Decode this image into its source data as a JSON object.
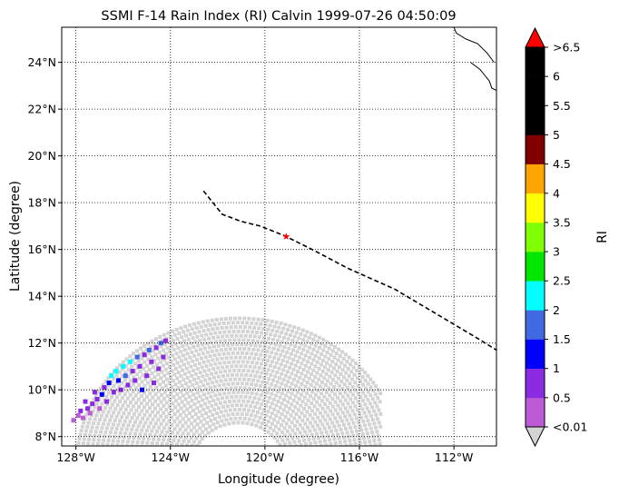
{
  "chart_data": {
    "type": "heatmap",
    "title": "SSMI F-14 Rain Index (RI) Calvin 1999-07-26 04:50:09",
    "xlabel": "Longitude (degree)",
    "ylabel": "Latitude (degree)",
    "xlim": [
      -128.6,
      -110.2
    ],
    "ylim": [
      7.6,
      25.5
    ],
    "xticks": [
      {
        "value": -128,
        "label": "128°W"
      },
      {
        "value": -124,
        "label": "124°W"
      },
      {
        "value": -120,
        "label": "120°W"
      },
      {
        "value": -116,
        "label": "116°W"
      },
      {
        "value": -112,
        "label": "112°W"
      }
    ],
    "yticks": [
      {
        "value": 8,
        "label": "8°N"
      },
      {
        "value": 10,
        "label": "10°N"
      },
      {
        "value": 12,
        "label": "12°N"
      },
      {
        "value": 14,
        "label": "14°N"
      },
      {
        "value": 16,
        "label": "16°N"
      },
      {
        "value": 18,
        "label": "18°N"
      },
      {
        "value": 20,
        "label": "20°N"
      },
      {
        "value": 22,
        "label": "22°N"
      },
      {
        "value": 24,
        "label": "24°N"
      }
    ],
    "grid": true,
    "swath": {
      "center_lon": -121.1,
      "center_lat": 6.8,
      "outer_radius_deg": 5.7,
      "color": "#d3d3d3"
    },
    "track": [
      [
        -122.6,
        18.5
      ],
      [
        -122.2,
        18.0
      ],
      [
        -121.8,
        17.5
      ],
      [
        -121.0,
        17.2
      ],
      [
        -120.2,
        17.0
      ],
      [
        -119.2,
        16.6
      ],
      [
        -118.0,
        16.0
      ],
      [
        -116.5,
        15.2
      ],
      [
        -114.5,
        14.3
      ],
      [
        -112.5,
        13.1
      ],
      [
        -111.0,
        12.2
      ],
      [
        -110.2,
        11.7
      ]
    ],
    "storm_center": {
      "lon": -119.1,
      "lat": 16.55,
      "color": "#ff0000"
    },
    "coastline": [
      [
        -110.3,
        24.0
      ],
      [
        -110.6,
        24.4
      ],
      [
        -111.0,
        24.8
      ],
      [
        -111.5,
        25.0
      ],
      [
        -111.9,
        25.25
      ],
      [
        -112.0,
        25.5
      ]
    ],
    "coastline2": [
      [
        -110.2,
        22.8
      ],
      [
        -110.4,
        22.9
      ],
      [
        -110.5,
        23.2
      ],
      [
        -110.9,
        23.7
      ],
      [
        -111.3,
        24.0
      ]
    ],
    "rain_cells": [
      {
        "lon": -128.1,
        "lat": 8.7,
        "ri": 0.3
      },
      {
        "lon": -127.9,
        "lat": 8.9,
        "ri": 0.3
      },
      {
        "lon": -127.7,
        "lat": 8.8,
        "ri": 0.2
      },
      {
        "lon": -127.8,
        "lat": 9.1,
        "ri": 0.8
      },
      {
        "lon": -127.5,
        "lat": 9.2,
        "ri": 0.8
      },
      {
        "lon": -127.6,
        "lat": 9.5,
        "ri": 0.8
      },
      {
        "lon": -127.4,
        "lat": 9.0,
        "ri": 0.3
      },
      {
        "lon": -127.3,
        "lat": 9.4,
        "ri": 0.7
      },
      {
        "lon": -127.1,
        "lat": 9.6,
        "ri": 0.8
      },
      {
        "lon": -127.2,
        "lat": 9.9,
        "ri": 0.6
      },
      {
        "lon": -127.0,
        "lat": 9.2,
        "ri": 0.3
      },
      {
        "lon": -126.9,
        "lat": 9.8,
        "ri": 1.2
      },
      {
        "lon": -126.8,
        "lat": 10.1,
        "ri": 0.8
      },
      {
        "lon": -126.7,
        "lat": 9.5,
        "ri": 0.6
      },
      {
        "lon": -126.6,
        "lat": 10.3,
        "ri": 1.3
      },
      {
        "lon": -126.5,
        "lat": 10.6,
        "ri": 2.3
      },
      {
        "lon": -126.4,
        "lat": 9.9,
        "ri": 0.8
      },
      {
        "lon": -126.3,
        "lat": 10.8,
        "ri": 2.4
      },
      {
        "lon": -126.2,
        "lat": 10.4,
        "ri": 1.2
      },
      {
        "lon": -126.1,
        "lat": 10.0,
        "ri": 0.7
      },
      {
        "lon": -126.0,
        "lat": 11.0,
        "ri": 2.3
      },
      {
        "lon": -125.9,
        "lat": 10.6,
        "ri": 1.8
      },
      {
        "lon": -125.8,
        "lat": 10.2,
        "ri": 0.8
      },
      {
        "lon": -125.7,
        "lat": 11.2,
        "ri": 2.2
      },
      {
        "lon": -125.6,
        "lat": 10.8,
        "ri": 0.9
      },
      {
        "lon": -125.5,
        "lat": 10.4,
        "ri": 0.7
      },
      {
        "lon": -125.4,
        "lat": 11.4,
        "ri": 1.8
      },
      {
        "lon": -125.3,
        "lat": 11.0,
        "ri": 0.8
      },
      {
        "lon": -125.2,
        "lat": 10.0,
        "ri": 1.2
      },
      {
        "lon": -125.1,
        "lat": 11.5,
        "ri": 0.9
      },
      {
        "lon": -125.0,
        "lat": 10.6,
        "ri": 0.8
      },
      {
        "lon": -124.9,
        "lat": 11.7,
        "ri": 1.8
      },
      {
        "lon": -124.8,
        "lat": 11.2,
        "ri": 0.7
      },
      {
        "lon": -124.7,
        "lat": 10.3,
        "ri": 0.6
      },
      {
        "lon": -124.6,
        "lat": 11.8,
        "ri": 0.8
      },
      {
        "lon": -124.5,
        "lat": 10.9,
        "ri": 0.8
      },
      {
        "lon": -124.4,
        "lat": 12.0,
        "ri": 1.7
      },
      {
        "lon": -124.3,
        "lat": 11.4,
        "ri": 0.7
      },
      {
        "lon": -124.2,
        "lat": 12.1,
        "ri": 0.8
      }
    ]
  },
  "colorbar": {
    "label": "RI",
    "under_color": "#d3d3d3",
    "over_color": "#ff0000",
    "colors": [
      "#bd5bd6",
      "#8a2be2",
      "#0000ff",
      "#4169e1",
      "#00ffff",
      "#00e600",
      "#7fff00",
      "#ffff00",
      "#ffa500",
      "#800000",
      "#000000",
      "#000000",
      "#000000"
    ],
    "boundaries": [
      0.01,
      0.5,
      1,
      1.5,
      2,
      2.5,
      3,
      3.5,
      4,
      4.5,
      5,
      5.5,
      6,
      6.5
    ],
    "tick_labels": [
      "<0.01",
      "0.5",
      "1",
      "1.5",
      "2",
      "2.5",
      "3",
      "3.5",
      "4",
      "4.5",
      "5",
      "5.5",
      "6",
      ">6.5"
    ]
  }
}
